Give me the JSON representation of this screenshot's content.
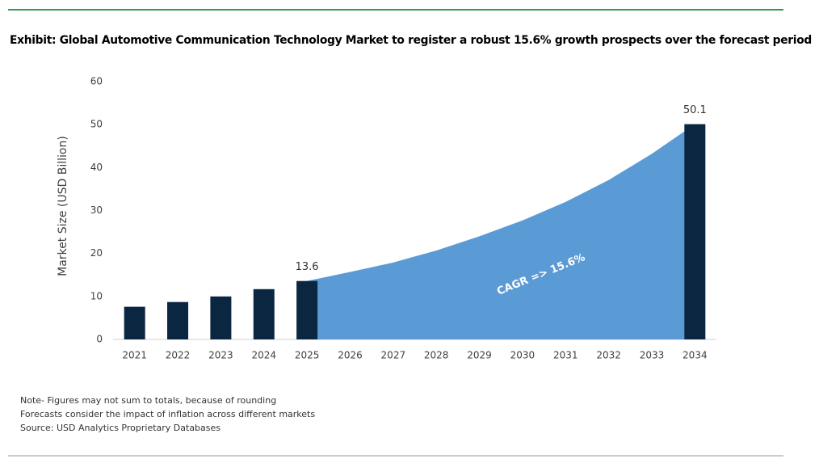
{
  "chart_data": {
    "type": "bar",
    "title": "Exhibit: Global Automotive Communication Technology Market to register a robust 15.6% growth prospects over the forecast period",
    "y_label": "Market Size (USD Billion)",
    "annotation": "CAGR => 15.6%",
    "categories": [
      "2021",
      "2022",
      "2023",
      "2024",
      "2025",
      "2026",
      "2027",
      "2028",
      "2029",
      "2030",
      "2031",
      "2032",
      "2033",
      "2034"
    ],
    "series": [
      {
        "type": "bar",
        "color": "#0b2641",
        "values": [
          7.6,
          8.7,
          10.0,
          11.7,
          13.6,
          null,
          null,
          null,
          null,
          null,
          null,
          null,
          null,
          50.1
        ],
        "value_labels": [
          null,
          null,
          null,
          null,
          "13.6",
          null,
          null,
          null,
          null,
          null,
          null,
          null,
          null,
          "50.1"
        ]
      },
      {
        "type": "area",
        "color": "#5b9bd5",
        "values": [
          null,
          null,
          null,
          null,
          13.6,
          15.7,
          17.9,
          20.7,
          24.0,
          27.7,
          32.0,
          37.1,
          43.2,
          50.1
        ]
      }
    ],
    "ylim": [
      0,
      60
    ],
    "yticks": [
      0,
      10,
      20,
      30,
      40,
      50,
      60
    ],
    "grid": false
  },
  "notes": [
    "Note- Figures may not sum to totals, because of rounding",
    "Forecasts consider the impact of inflation across different markets",
    "Source: USD Analytics Proprietary Databases"
  ]
}
